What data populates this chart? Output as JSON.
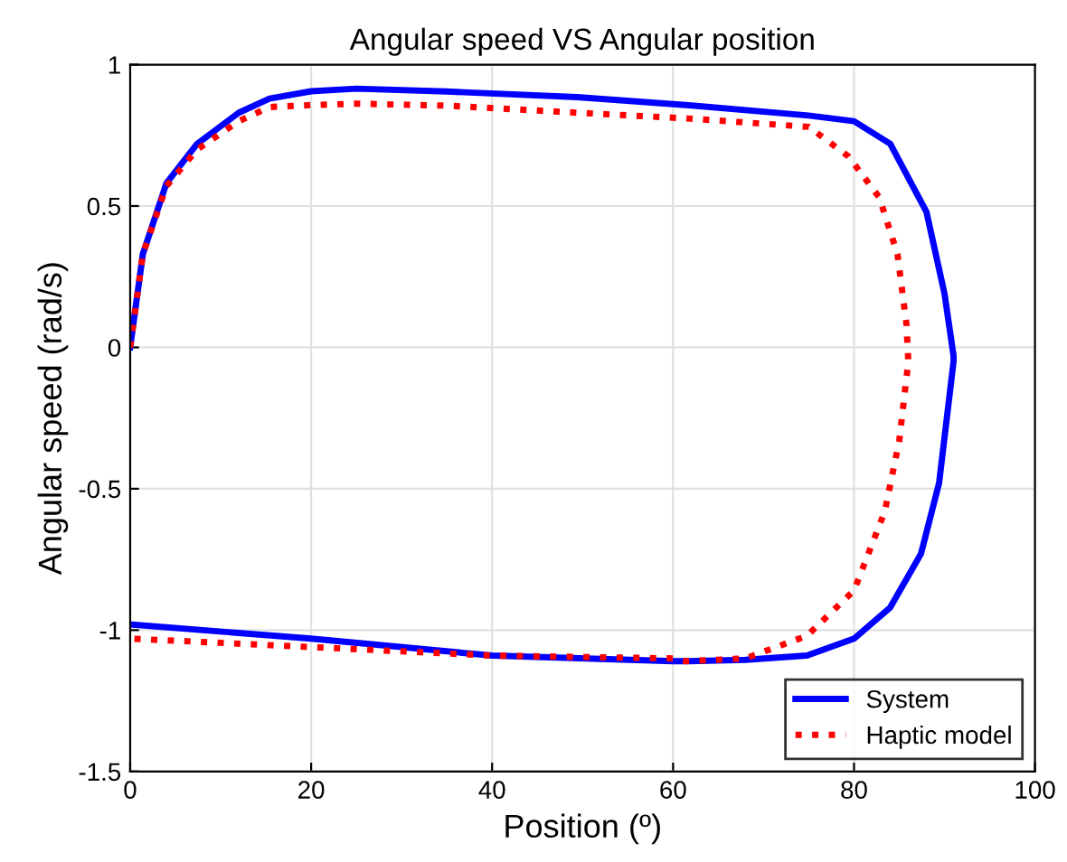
{
  "chart_data": {
    "type": "line",
    "title": "Angular speed VS Angular position",
    "xlabel": "Position (º)",
    "ylabel": "Angular speed (rad/s)",
    "xlim": [
      0,
      100
    ],
    "ylim": [
      -1.5,
      1
    ],
    "xticks": [
      0,
      20,
      40,
      60,
      80,
      100
    ],
    "yticks": [
      -1.5,
      -1,
      -0.5,
      0,
      0.5,
      1
    ],
    "grid": true,
    "legend": "bottom right",
    "series": [
      {
        "name": "System",
        "color": "#0000ff",
        "line_style": "solid",
        "x": [
          0,
          1.4,
          4,
          7.4,
          12,
          15.4,
          20,
          25,
          35,
          49.4,
          61.4,
          75,
          80,
          84,
          88,
          90,
          91,
          91,
          89.4,
          87.4,
          84,
          80,
          74.8,
          68,
          61.4,
          60,
          40,
          20,
          0
        ],
        "values": [
          0,
          0.33,
          0.58,
          0.72,
          0.83,
          0.88,
          0.906,
          0.915,
          0.905,
          0.885,
          0.857,
          0.82,
          0.8,
          0.72,
          0.48,
          0.19,
          -0.03,
          -0.05,
          -0.48,
          -0.73,
          -0.92,
          -1.03,
          -1.09,
          -1.105,
          -1.11,
          -1.11,
          -1.09,
          -1.03,
          -0.98
        ]
      },
      {
        "name": "Haptic model",
        "color": "#ff0000",
        "line_style": "dotted",
        "x": [
          0,
          1.4,
          4,
          7.4,
          12,
          15.4,
          20,
          25,
          35,
          49.4,
          61.4,
          75,
          79.4,
          82.8,
          84.8,
          85.8,
          86,
          85,
          83.4,
          80,
          74.8,
          68,
          61.4,
          60,
          40,
          20,
          0
        ],
        "values": [
          0,
          0.33,
          0.57,
          0.7,
          0.8,
          0.85,
          0.857,
          0.862,
          0.855,
          0.83,
          0.81,
          0.78,
          0.675,
          0.53,
          0.33,
          0.08,
          -0.05,
          -0.33,
          -0.58,
          -0.86,
          -1.02,
          -1.1,
          -1.11,
          -1.1,
          -1.09,
          -1.06,
          -1.03
        ]
      }
    ]
  }
}
